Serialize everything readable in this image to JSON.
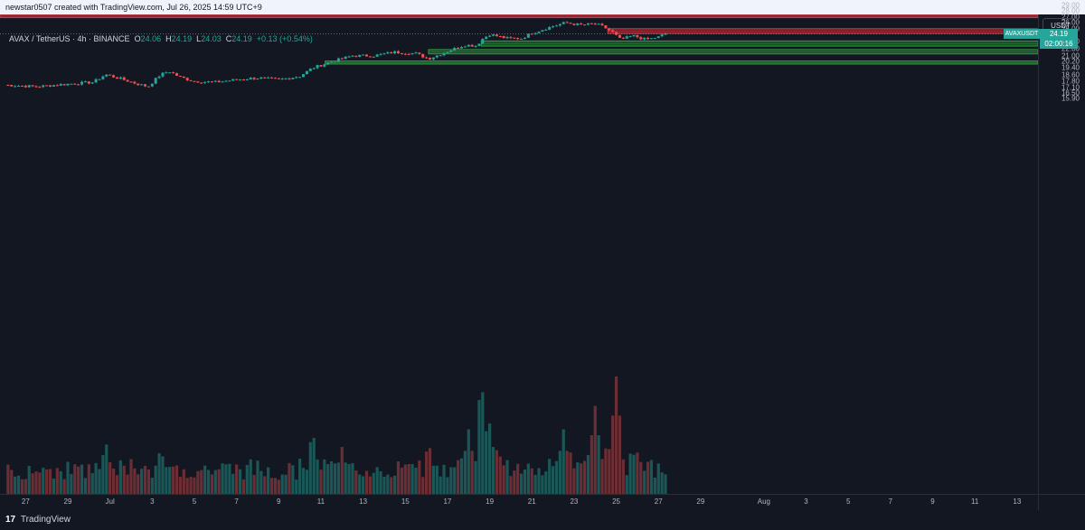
{
  "topbar": {
    "text": "newstar0507 created with TradingView.com, Jul 26, 2025 14:59 UTC+9"
  },
  "legend": {
    "symbol": "AVAX / TetherUS · 4h · BINANCE",
    "o_label": "O",
    "o": "24.06",
    "h_label": "H",
    "h": "24.19",
    "l_label": "L",
    "l": "24.03",
    "c_label": "C",
    "c": "24.19",
    "change": "+0.13 (+0.54%)"
  },
  "price_axis": {
    "unit": "USDT"
  },
  "last_price": {
    "symbol": "AVAXUSDT",
    "price": "24.19",
    "countdown": "02:00:16"
  },
  "footer": {
    "logo": "17",
    "brand": "TradingView"
  },
  "colors": {
    "up": "#26a69a",
    "down": "#ef5350",
    "resistance": "#b22833",
    "support": "#1f7a2c",
    "background": "#131722"
  },
  "chart_data": {
    "type": "candlestick",
    "symbol": "AVAX / TetherUS",
    "interval": "4h",
    "exchange": "BINANCE",
    "y_scale": "log",
    "ylim": [
      15.9,
      38.0
    ],
    "price_ticks": [
      "37.00",
      "35.00",
      "33.00",
      "31.00",
      "29.00",
      "28.00",
      "27.00",
      "26.00",
      "25.00",
      "24.00",
      "23.00",
      "22.00",
      "21.00",
      "20.20",
      "19.40",
      "18.60",
      "17.80",
      "17.10",
      "16.50",
      "15.90"
    ],
    "time_ticks": [
      "27",
      "29",
      "Jul",
      "3",
      "5",
      "7",
      "9",
      "11",
      "13",
      "15",
      "17",
      "19",
      "21",
      "23",
      "25",
      "27",
      "29",
      "Aug",
      "3",
      "5",
      "7",
      "9",
      "11",
      "13"
    ],
    "x_start": "2025-06-26",
    "zones": [
      {
        "type": "resistance",
        "low": 35.4,
        "high": 36.2
      },
      {
        "type": "resistance",
        "low": 26.85,
        "high": 27.3
      },
      {
        "type": "resistance",
        "low": 24.25,
        "high": 25.0
      },
      {
        "type": "support",
        "low": 22.35,
        "high": 23.1
      },
      {
        "type": "support",
        "low": 21.25,
        "high": 21.85
      },
      {
        "type": "support",
        "low": 19.9,
        "high": 20.3
      }
    ],
    "waypoints": [
      {
        "t": 0,
        "p": 17.4
      },
      {
        "t": 1.5,
        "p": 17.2
      },
      {
        "t": 3,
        "p": 17.5
      },
      {
        "t": 4.2,
        "p": 17.7
      },
      {
        "t": 4.8,
        "p": 18.6
      },
      {
        "t": 5.5,
        "p": 18.1
      },
      {
        "t": 6.3,
        "p": 17.5
      },
      {
        "t": 6.8,
        "p": 17.2
      },
      {
        "t": 7.4,
        "p": 18.6
      },
      {
        "t": 7.8,
        "p": 19.0
      },
      {
        "t": 8.3,
        "p": 18.3
      },
      {
        "t": 9.0,
        "p": 17.8
      },
      {
        "t": 10.0,
        "p": 17.7
      },
      {
        "t": 11.0,
        "p": 18.0
      },
      {
        "t": 12.0,
        "p": 18.2
      },
      {
        "t": 13.0,
        "p": 18.0
      },
      {
        "t": 14.0,
        "p": 18.4
      },
      {
        "t": 14.6,
        "p": 19.4
      },
      {
        "t": 15.5,
        "p": 20.2
      },
      {
        "t": 16.5,
        "p": 21.0
      },
      {
        "t": 17.5,
        "p": 21.0
      },
      {
        "t": 18.5,
        "p": 21.5
      },
      {
        "t": 19.5,
        "p": 21.3
      },
      {
        "t": 20.1,
        "p": 20.6
      },
      {
        "t": 21.0,
        "p": 21.6
      },
      {
        "t": 21.8,
        "p": 22.5
      },
      {
        "t": 22.4,
        "p": 22.4
      },
      {
        "t": 22.6,
        "p": 23.3
      },
      {
        "t": 23.0,
        "p": 24.1
      },
      {
        "t": 23.8,
        "p": 23.5
      },
      {
        "t": 24.5,
        "p": 23.5
      },
      {
        "t": 25.0,
        "p": 24.3
      },
      {
        "t": 25.8,
        "p": 25.2
      },
      {
        "t": 26.2,
        "p": 25.6
      },
      {
        "t": 26.6,
        "p": 26.0
      },
      {
        "t": 27.3,
        "p": 25.6
      },
      {
        "t": 28.0,
        "p": 25.8
      },
      {
        "t": 28.4,
        "p": 25.3
      },
      {
        "t": 28.8,
        "p": 24.5
      },
      {
        "t": 29.2,
        "p": 23.3
      },
      {
        "t": 29.8,
        "p": 23.9
      },
      {
        "t": 30.4,
        "p": 23.3
      },
      {
        "t": 31.0,
        "p": 23.7
      },
      {
        "t": 31.3,
        "p": 24.19
      }
    ],
    "volume_peaks": [
      {
        "t": 4.8,
        "v": 0.45
      },
      {
        "t": 7.4,
        "v": 0.4
      },
      {
        "t": 14.6,
        "v": 0.55
      },
      {
        "t": 16.0,
        "v": 0.4
      },
      {
        "t": 20.1,
        "v": 0.45
      },
      {
        "t": 22.0,
        "v": 0.55
      },
      {
        "t": 22.6,
        "v": 1.0
      },
      {
        "t": 23.0,
        "v": 0.6
      },
      {
        "t": 26.5,
        "v": 0.55
      },
      {
        "t": 28.0,
        "v": 0.75
      },
      {
        "t": 29.0,
        "v": 1.0
      }
    ]
  }
}
